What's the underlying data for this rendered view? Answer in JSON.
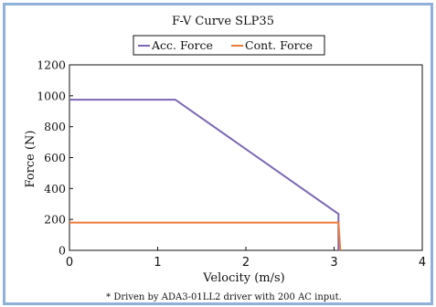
{
  "chart_data": {
    "type": "line",
    "title": "F-V Curve  SLP35",
    "xlabel": "Velocity (m/s)",
    "ylabel": "Force (N)",
    "xlim": [
      0,
      4
    ],
    "ylim": [
      0,
      1200
    ],
    "xticks": [
      0,
      1,
      2,
      3,
      4
    ],
    "yticks": [
      0,
      200,
      400,
      600,
      800,
      1000,
      1200
    ],
    "grid": false,
    "legend_position": "top-center",
    "series": [
      {
        "name": "Acc. Force",
        "color": "#7b68b5",
        "x": [
          0,
          1.2,
          3.05,
          3.05
        ],
        "y": [
          975,
          975,
          235,
          0
        ]
      },
      {
        "name": "Cont. Force",
        "color": "#ee7a3a",
        "x": [
          0,
          3.05,
          3.07
        ],
        "y": [
          180,
          180,
          0
        ]
      }
    ],
    "footnote": "* Driven by ADA3-01LL2 driver with 200 AC input."
  }
}
